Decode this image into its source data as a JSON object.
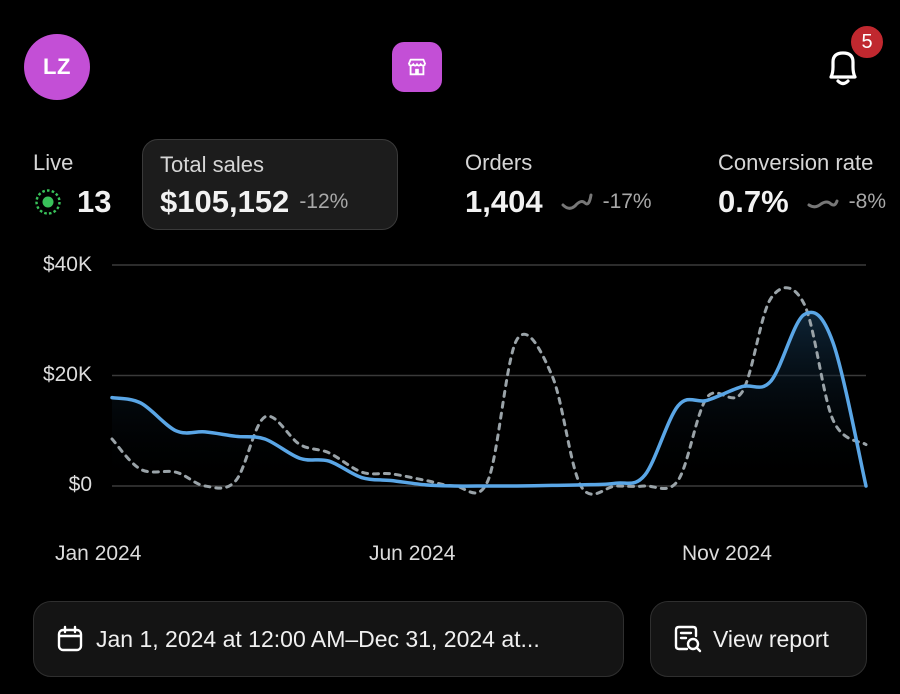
{
  "header": {
    "avatar_initials": "LZ",
    "notification_count": "5",
    "accent_color": "#c34fd6",
    "badge_color": "#c0282f"
  },
  "metrics": {
    "live": {
      "label": "Live",
      "value": "13",
      "icon": "live-pulse-icon"
    },
    "total_sales": {
      "label": "Total sales",
      "value": "$105,152",
      "change": "-12%"
    },
    "orders": {
      "label": "Orders",
      "value": "1,404",
      "change": "-17%",
      "icon": "sparkline-icon"
    },
    "conversion": {
      "label": "Conversion rate",
      "value": "0.7%",
      "change": "-8%",
      "icon": "sparkline-icon"
    }
  },
  "chart_data": {
    "type": "line",
    "yticks": [
      "$40K",
      "$20K",
      "$0"
    ],
    "ylim": [
      0,
      40000
    ],
    "xticks": [
      "Jan 2024",
      "Jun 2024",
      "Nov 2024"
    ],
    "x": [
      "2024-01-01",
      "2024-01-15",
      "2024-02-01",
      "2024-02-15",
      "2024-03-01",
      "2024-03-15",
      "2024-04-01",
      "2024-04-15",
      "2024-05-01",
      "2024-05-15",
      "2024-06-01",
      "2024-06-15",
      "2024-07-01",
      "2024-07-15",
      "2024-08-01",
      "2024-08-15",
      "2024-09-01",
      "2024-09-15",
      "2024-10-01",
      "2024-10-15",
      "2024-11-01",
      "2024-11-15",
      "2024-12-01",
      "2024-12-15",
      "2024-12-31"
    ],
    "series": [
      {
        "style": "solid",
        "color": "#5aa6e6",
        "values": [
          16000,
          15000,
          10000,
          9800,
          9000,
          8500,
          5000,
          4500,
          1500,
          1000,
          200,
          0,
          0,
          0,
          100,
          200,
          500,
          2000,
          14500,
          15500,
          18000,
          19000,
          31000,
          26000,
          0
        ]
      },
      {
        "style": "dashed",
        "color": "#9aa3a8",
        "values": [
          8500,
          3000,
          2500,
          0,
          1000,
          12500,
          7500,
          6000,
          2500,
          2200,
          1000,
          0,
          1000,
          26500,
          20000,
          0,
          0,
          0,
          1000,
          16000,
          17000,
          34000,
          33000,
          12000,
          7500
        ]
      }
    ],
    "grid": true,
    "legend": "none"
  },
  "footer": {
    "date_range": "Jan 1, 2024 at 12:00 AM–Dec 31, 2024 at...",
    "report_label": "View report"
  }
}
